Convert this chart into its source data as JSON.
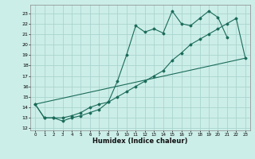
{
  "xlabel": "Humidex (Indice chaleur)",
  "bg_color": "#cceee8",
  "grid_color": "#aad4ce",
  "line_color": "#1a6b5a",
  "xlim": [
    -0.5,
    23.5
  ],
  "ylim": [
    11.8,
    23.8
  ],
  "yticks": [
    12,
    13,
    14,
    15,
    16,
    17,
    18,
    19,
    20,
    21,
    22,
    23
  ],
  "xticks": [
    0,
    1,
    2,
    3,
    4,
    5,
    6,
    7,
    8,
    9,
    10,
    11,
    12,
    13,
    14,
    15,
    16,
    17,
    18,
    19,
    20,
    21,
    22,
    23
  ],
  "series1_x": [
    0,
    1,
    2,
    3,
    4,
    5,
    6,
    7,
    8,
    9,
    10,
    11,
    12,
    13,
    14,
    15,
    16,
    17,
    18,
    19,
    20,
    21
  ],
  "series1_y": [
    14.3,
    13.0,
    13.0,
    12.7,
    13.0,
    13.2,
    13.5,
    13.8,
    14.5,
    16.5,
    19.0,
    21.8,
    21.2,
    21.5,
    21.1,
    23.2,
    22.0,
    21.8,
    22.5,
    23.2,
    22.6,
    20.7
  ],
  "series2_x": [
    0,
    1,
    2,
    3,
    4,
    5,
    6,
    7,
    8,
    9,
    10,
    11,
    12,
    13,
    14,
    15,
    16,
    17,
    18,
    19,
    20,
    21,
    22,
    23
  ],
  "series2_y": [
    14.3,
    13.0,
    13.0,
    13.0,
    13.2,
    13.5,
    14.0,
    14.3,
    14.5,
    15.0,
    15.5,
    16.0,
    16.5,
    17.0,
    17.5,
    18.5,
    19.2,
    20.0,
    20.5,
    21.0,
    21.5,
    22.0,
    22.5,
    18.7
  ],
  "series3_x": [
    0,
    23
  ],
  "series3_y": [
    14.3,
    18.7
  ]
}
